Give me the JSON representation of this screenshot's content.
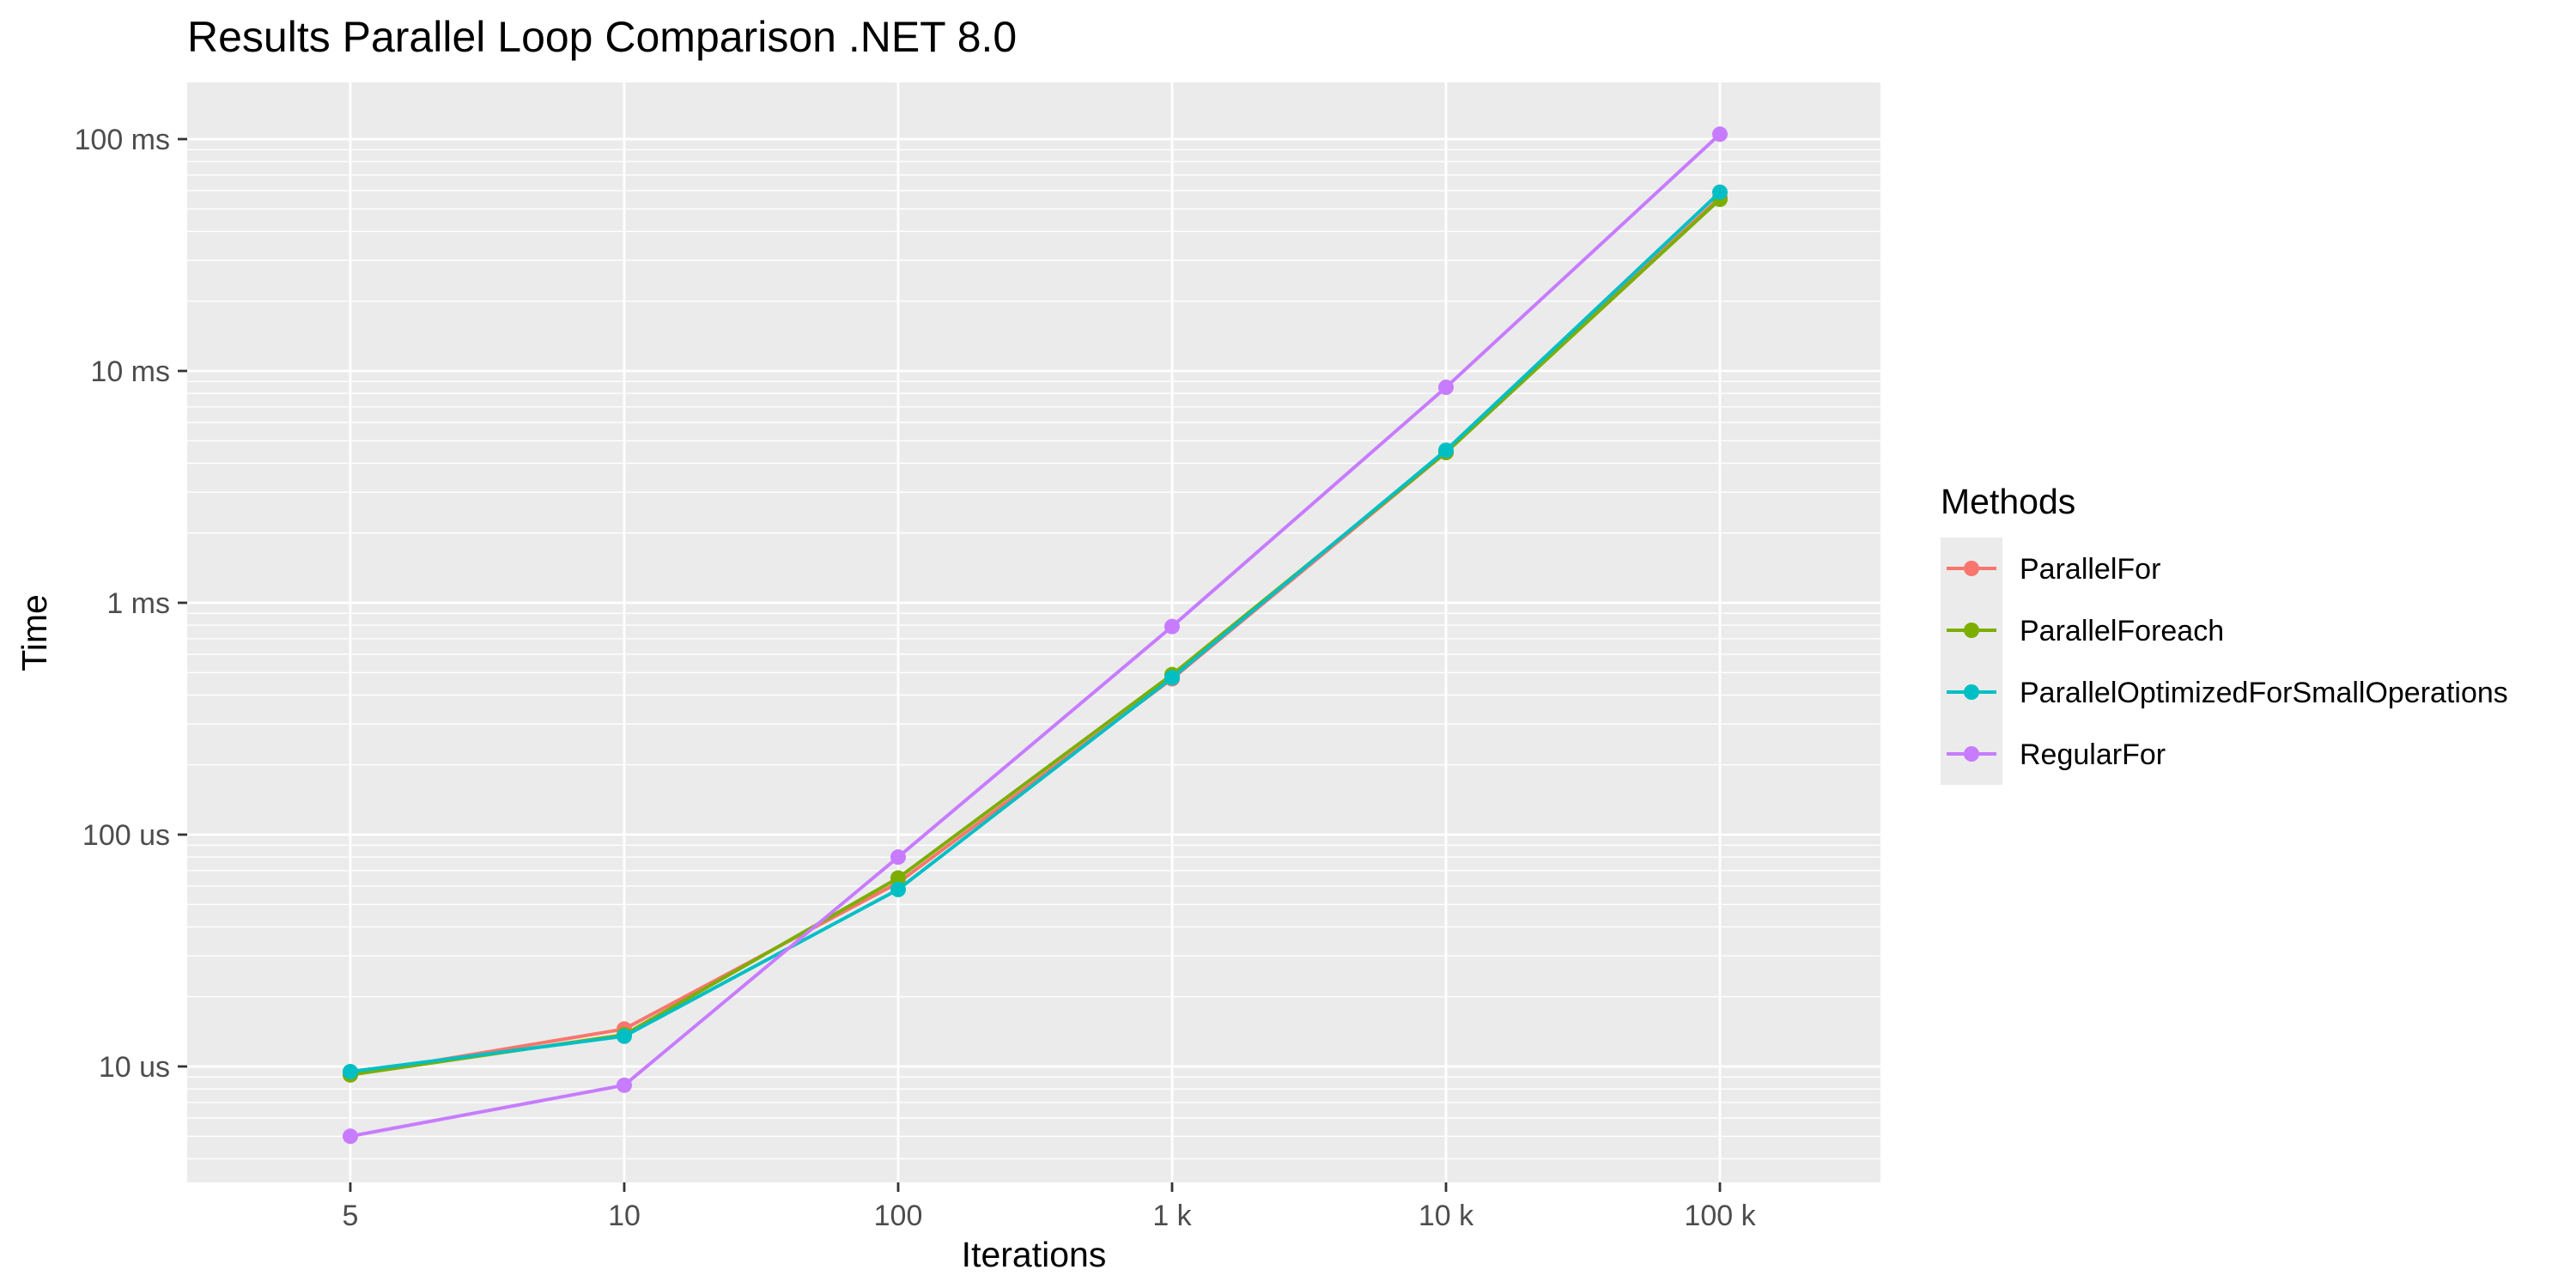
{
  "chart_data": {
    "type": "line",
    "title": "Results Parallel Loop Comparison  .NET 8.0",
    "xlabel": "Iterations",
    "ylabel": "Time",
    "x_scale": "log",
    "y_scale": "log",
    "y_unit": "us",
    "x": [
      5,
      10,
      100,
      1000,
      10000,
      100000
    ],
    "x_tick_labels": [
      "5",
      "10",
      "100",
      "1 k",
      "10 k",
      "100 k"
    ],
    "y_ticks": [
      10,
      100,
      1000,
      10000,
      100000
    ],
    "y_tick_labels": [
      "10 us",
      "100 us",
      "1 ms",
      "10 ms",
      "100 ms"
    ],
    "ylim": [
      3.5,
      160000
    ],
    "legend_title": "Methods",
    "legend_position": "right",
    "grid": true,
    "series": [
      {
        "name": "ParallelFor",
        "color": "#F8766D",
        "values": [
          9.2,
          14.5,
          62,
          470,
          4450,
          56000
        ]
      },
      {
        "name": "ParallelForeach",
        "color": "#7CAE00",
        "values": [
          9.2,
          13.7,
          65,
          490,
          4450,
          55000
        ]
      },
      {
        "name": "ParallelOptimizedForSmallOperations",
        "color": "#00BFC4",
        "values": [
          9.5,
          13.5,
          58,
          475,
          4550,
          59000
        ]
      },
      {
        "name": "RegularFor",
        "color": "#C77CFF",
        "values": [
          5.0,
          8.3,
          80,
          790,
          8500,
          105000
        ]
      }
    ]
  }
}
